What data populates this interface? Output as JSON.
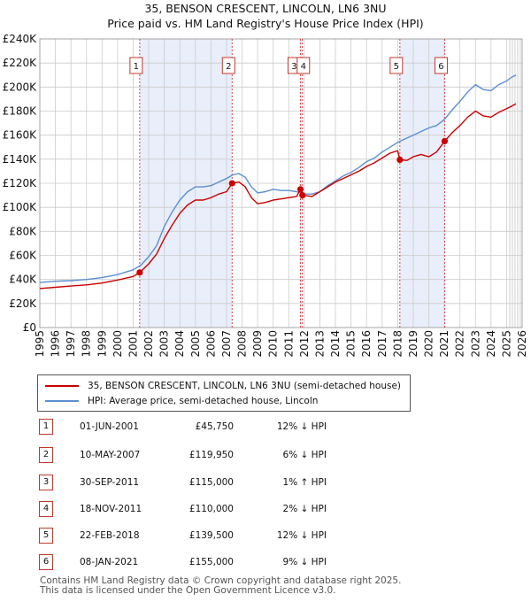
{
  "title_line1": "35, BENSON CRESCENT, LINCOLN, LN6 3NU",
  "title_line2": "Price paid vs. HM Land Registry's House Price Index (HPI)",
  "legend": {
    "red_label": "35, BENSON CRESCENT, LINCOLN, LN6 3NU (semi-detached house)",
    "blue_label": "HPI: Average price, semi-detached house, Lincoln"
  },
  "colors": {
    "red": "#cc0000",
    "blue": "#5b8fd0",
    "shade": "#e8eefa",
    "vline": "#dd4444",
    "grid": "#cccccc"
  },
  "chart_data": {
    "type": "line",
    "title": "Price paid vs. HM Land Registry's House Price Index (HPI)",
    "xlim": [
      1995,
      2026
    ],
    "ylim": [
      0,
      240000
    ],
    "y_ticks": [
      0,
      20000,
      40000,
      60000,
      80000,
      100000,
      120000,
      140000,
      160000,
      180000,
      200000,
      220000,
      240000
    ],
    "y_tick_labels": [
      "£0",
      "£20K",
      "£40K",
      "£60K",
      "£80K",
      "£100K",
      "£120K",
      "£140K",
      "£160K",
      "£180K",
      "£200K",
      "£220K",
      "£240K"
    ],
    "x_ticks": [
      1995,
      1996,
      1997,
      1998,
      1999,
      2000,
      2001,
      2002,
      2003,
      2004,
      2005,
      2006,
      2007,
      2008,
      2009,
      2010,
      2011,
      2012,
      2013,
      2014,
      2015,
      2016,
      2017,
      2018,
      2019,
      2020,
      2021,
      2022,
      2023,
      2024,
      2025,
      2026
    ],
    "x_tick_labels": [
      "1995",
      "1996",
      "1997",
      "1998",
      "1999",
      "2000",
      "2001",
      "2002",
      "2003",
      "2004",
      "2005",
      "2006",
      "2007",
      "2008",
      "2009",
      "2010",
      "2011",
      "2012",
      "2013",
      "2014",
      "2015",
      "2016",
      "2017",
      "2018",
      "2019",
      "2020",
      "2021",
      "2022",
      "2023",
      "2024",
      "2025",
      "2026"
    ],
    "shaded_ranges": [
      [
        2001.42,
        2007.36
      ],
      [
        2011.75,
        2011.88
      ],
      [
        2018.14,
        2021.02
      ]
    ],
    "future_start": 2025.2,
    "series": [
      {
        "name": "HPI: Average price, semi-detached house, Lincoln",
        "color": "#5b8fd0",
        "points": [
          [
            1995.0,
            37500
          ],
          [
            1996.0,
            38500
          ],
          [
            1997.0,
            39000
          ],
          [
            1998.0,
            40000
          ],
          [
            1999.0,
            41500
          ],
          [
            2000.0,
            44000
          ],
          [
            2001.0,
            48000
          ],
          [
            2001.5,
            52000
          ],
          [
            2002.0,
            59000
          ],
          [
            2002.5,
            68000
          ],
          [
            2003.0,
            84000
          ],
          [
            2003.5,
            96000
          ],
          [
            2004.0,
            106000
          ],
          [
            2004.5,
            113000
          ],
          [
            2005.0,
            117000
          ],
          [
            2005.5,
            117000
          ],
          [
            2006.0,
            118000
          ],
          [
            2006.5,
            121000
          ],
          [
            2007.0,
            124000
          ],
          [
            2007.4,
            127000
          ],
          [
            2007.8,
            128000
          ],
          [
            2008.2,
            125000
          ],
          [
            2008.6,
            117000
          ],
          [
            2009.0,
            112000
          ],
          [
            2009.5,
            113000
          ],
          [
            2010.0,
            115000
          ],
          [
            2010.5,
            114000
          ],
          [
            2011.0,
            114000
          ],
          [
            2011.5,
            113000
          ],
          [
            2012.0,
            111000
          ],
          [
            2012.5,
            111000
          ],
          [
            2013.0,
            113000
          ],
          [
            2013.5,
            118000
          ],
          [
            2014.0,
            122000
          ],
          [
            2014.5,
            126000
          ],
          [
            2015.0,
            129000
          ],
          [
            2015.5,
            133000
          ],
          [
            2016.0,
            138000
          ],
          [
            2016.5,
            141000
          ],
          [
            2017.0,
            146000
          ],
          [
            2017.5,
            150000
          ],
          [
            2018.0,
            154000
          ],
          [
            2018.5,
            157000
          ],
          [
            2019.0,
            160000
          ],
          [
            2019.5,
            163000
          ],
          [
            2020.0,
            166000
          ],
          [
            2020.5,
            168000
          ],
          [
            2021.0,
            173000
          ],
          [
            2021.5,
            181000
          ],
          [
            2022.0,
            188000
          ],
          [
            2022.5,
            196000
          ],
          [
            2023.0,
            202000
          ],
          [
            2023.5,
            198000
          ],
          [
            2024.0,
            197000
          ],
          [
            2024.5,
            202000
          ],
          [
            2025.0,
            205000
          ],
          [
            2025.3,
            208000
          ],
          [
            2025.6,
            210000
          ]
        ]
      },
      {
        "name": "35, BENSON CRESCENT, LINCOLN, LN6 3NU (semi-detached house)",
        "color": "#cc0000",
        "points": [
          [
            1995.0,
            32500
          ],
          [
            1996.0,
            33500
          ],
          [
            1997.0,
            34500
          ],
          [
            1998.0,
            35500
          ],
          [
            1999.0,
            37000
          ],
          [
            2000.0,
            39500
          ],
          [
            2001.0,
            42500
          ],
          [
            2001.42,
            45750
          ],
          [
            2002.0,
            53000
          ],
          [
            2002.5,
            61000
          ],
          [
            2003.0,
            74000
          ],
          [
            2003.5,
            85000
          ],
          [
            2004.0,
            95000
          ],
          [
            2004.5,
            102000
          ],
          [
            2005.0,
            106000
          ],
          [
            2005.5,
            106000
          ],
          [
            2006.0,
            108000
          ],
          [
            2006.5,
            111000
          ],
          [
            2007.0,
            113000
          ],
          [
            2007.36,
            119950
          ],
          [
            2007.8,
            121000
          ],
          [
            2008.2,
            117000
          ],
          [
            2008.6,
            108000
          ],
          [
            2009.0,
            103000
          ],
          [
            2009.5,
            104000
          ],
          [
            2010.0,
            106000
          ],
          [
            2010.5,
            107000
          ],
          [
            2011.0,
            108000
          ],
          [
            2011.5,
            109000
          ],
          [
            2011.75,
            115000
          ],
          [
            2011.88,
            110000
          ],
          [
            2012.5,
            109000
          ],
          [
            2013.0,
            113000
          ],
          [
            2013.5,
            117000
          ],
          [
            2014.0,
            121000
          ],
          [
            2014.5,
            124000
          ],
          [
            2015.0,
            127000
          ],
          [
            2015.5,
            130000
          ],
          [
            2016.0,
            134000
          ],
          [
            2016.5,
            137000
          ],
          [
            2017.0,
            141000
          ],
          [
            2017.5,
            145000
          ],
          [
            2018.0,
            147000
          ],
          [
            2018.14,
            139500
          ],
          [
            2018.6,
            139000
          ],
          [
            2019.0,
            142000
          ],
          [
            2019.5,
            144000
          ],
          [
            2020.0,
            142000
          ],
          [
            2020.5,
            146000
          ],
          [
            2021.02,
            155000
          ],
          [
            2021.5,
            162000
          ],
          [
            2022.0,
            168000
          ],
          [
            2022.5,
            175000
          ],
          [
            2023.0,
            180000
          ],
          [
            2023.5,
            176000
          ],
          [
            2024.0,
            175000
          ],
          [
            2024.5,
            179000
          ],
          [
            2025.0,
            182000
          ],
          [
            2025.3,
            184000
          ],
          [
            2025.6,
            186000
          ]
        ]
      }
    ],
    "sales": [
      {
        "n": "1",
        "x": 2001.42,
        "price": 45750
      },
      {
        "n": "2",
        "x": 2007.36,
        "price": 119950
      },
      {
        "n": "3",
        "x": 2011.75,
        "price": 115000
      },
      {
        "n": "4",
        "x": 2011.88,
        "price": 110000
      },
      {
        "n": "5",
        "x": 2018.14,
        "price": 139500
      },
      {
        "n": "6",
        "x": 2021.02,
        "price": 155000
      }
    ],
    "box_labels": [
      {
        "n": "1"
      },
      {
        "n": "2"
      },
      {
        "n": "3"
      },
      {
        "n": "4"
      },
      {
        "n": "5"
      },
      {
        "n": "6"
      }
    ]
  },
  "sales_table": [
    {
      "n": "1",
      "date": "01-JUN-2001",
      "price": "£45,750",
      "hpi": "12% ↓ HPI"
    },
    {
      "n": "2",
      "date": "10-MAY-2007",
      "price": "£119,950",
      "hpi": "6% ↓ HPI"
    },
    {
      "n": "3",
      "date": "30-SEP-2011",
      "price": "£115,000",
      "hpi": "1% ↑ HPI"
    },
    {
      "n": "4",
      "date": "18-NOV-2011",
      "price": "£110,000",
      "hpi": "2% ↓ HPI"
    },
    {
      "n": "5",
      "date": "22-FEB-2018",
      "price": "£139,500",
      "hpi": "12% ↓ HPI"
    },
    {
      "n": "6",
      "date": "08-JAN-2021",
      "price": "£155,000",
      "hpi": "9% ↓ HPI"
    }
  ],
  "footer": {
    "line1": "Contains HM Land Registry data © Crown copyright and database right 2025.",
    "line2": "This data is licensed under the Open Government Licence v3.0."
  }
}
